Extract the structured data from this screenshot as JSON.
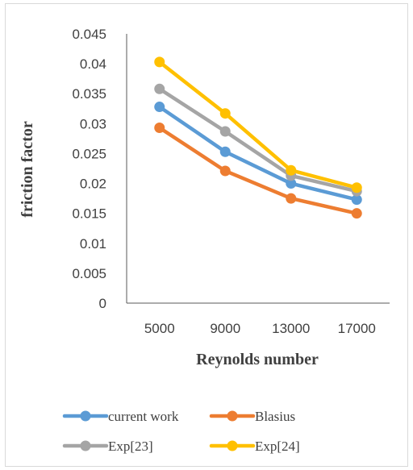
{
  "chart_data": {
    "type": "line",
    "categories": [
      "5000",
      "9000",
      "13000",
      "17000"
    ],
    "series": [
      {
        "name": "current work",
        "color": "#5B9BD5",
        "values": [
          0.0328,
          0.0253,
          0.02,
          0.0173
        ]
      },
      {
        "name": "Blasius",
        "color": "#ED7D31",
        "values": [
          0.0293,
          0.0221,
          0.0175,
          0.015
        ]
      },
      {
        "name": "Exp[23]",
        "color": "#A5A5A5",
        "values": [
          0.0358,
          0.0287,
          0.0213,
          0.0187
        ]
      },
      {
        "name": "Exp[24]",
        "color": "#FFC000",
        "values": [
          0.0403,
          0.0317,
          0.0222,
          0.0193
        ]
      }
    ],
    "y_ticks": [
      "0",
      "0.005",
      "0.01",
      "0.015",
      "0.02",
      "0.025",
      "0.03",
      "0.035",
      "0.04",
      "0.045"
    ],
    "xlabel": "Reynolds number",
    "ylabel": "friction factor",
    "ylim": [
      0,
      0.045
    ],
    "grid": false,
    "legend_position": "bottom"
  }
}
